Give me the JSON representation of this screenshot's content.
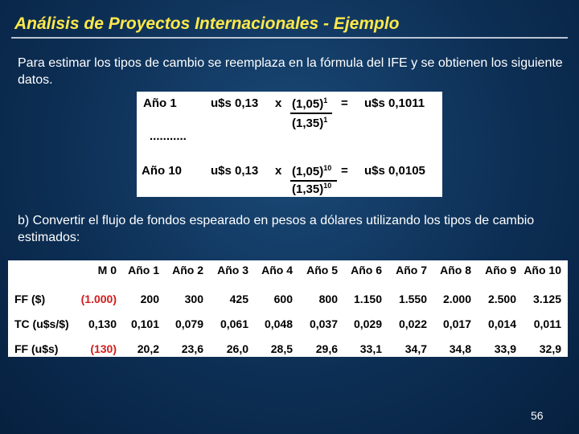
{
  "title": "Análisis de Proyectos Internacionales - Ejemplo",
  "paragraph1": "Para estimar los tipos de cambio se reemplaza en la fórmula del IFE y se obtienen los siguiente datos.",
  "formula": {
    "row1": {
      "label": "Año 1",
      "spot": "u$s 0,13",
      "times": "x",
      "num": "(1,05)",
      "num_exp": "1",
      "eq": "=",
      "den": "(1,35)",
      "den_exp": "1",
      "result": "u$s 0,1011"
    },
    "ellipsis": "...........",
    "row10": {
      "label": "Año 10",
      "spot": "u$s 0,13",
      "times": "x",
      "num": "(1,05)",
      "num_exp": "10",
      "eq": "=",
      "den": "(1,35)",
      "den_exp": "10",
      "result": "u$s 0,0105"
    }
  },
  "paragraph2": "b) Convertir el flujo de fondos espearado en pesos a dólares utilizando los tipos de cambio estimados:",
  "table": {
    "headers": [
      "M 0",
      "Año 1",
      "Año 2",
      "Año 3",
      "Año 4",
      "Año 5",
      "Año 6",
      "Año 7",
      "Año 8",
      "Año 9",
      "Año 10"
    ],
    "rows": [
      {
        "label": "FF ($)",
        "values": [
          "(1.000)",
          "200",
          "300",
          "425",
          "600",
          "800",
          "1.150",
          "1.550",
          "2.000",
          "2.500",
          "3.125"
        ]
      },
      {
        "label": "TC (u$s/$)",
        "values": [
          "0,130",
          "0,101",
          "0,079",
          "0,061",
          "0,048",
          "0,037",
          "0,029",
          "0,022",
          "0,017",
          "0,014",
          "0,011"
        ]
      },
      {
        "label": "FF (u$s)",
        "values": [
          "(130)",
          "20,2",
          "23,6",
          "26,0",
          "28,5",
          "29,6",
          "33,1",
          "34,7",
          "34,8",
          "33,9",
          "32,9"
        ]
      }
    ],
    "negative_color": "#d41c1c"
  },
  "page_number": "56"
}
